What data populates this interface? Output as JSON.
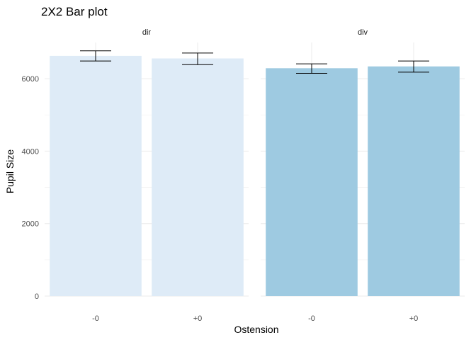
{
  "chart_data": {
    "type": "bar",
    "title": "2X2 Bar plot",
    "xlabel": "Ostension",
    "ylabel": "Pupil Size",
    "ylim": [
      0,
      7000
    ],
    "yticks": [
      0,
      2000,
      4000,
      6000
    ],
    "grid": true,
    "categories": [
      "-0",
      "+0"
    ],
    "panels": [
      {
        "label": "dir",
        "color": "#deebf7",
        "values": [
          6630,
          6560
        ],
        "error_low": [
          6490,
          6390
        ],
        "error_high": [
          6770,
          6710
        ]
      },
      {
        "label": "div",
        "color": "#9ecae1",
        "values": [
          6290,
          6340
        ],
        "error_low": [
          6150,
          6180
        ],
        "error_high": [
          6410,
          6490
        ]
      }
    ]
  }
}
